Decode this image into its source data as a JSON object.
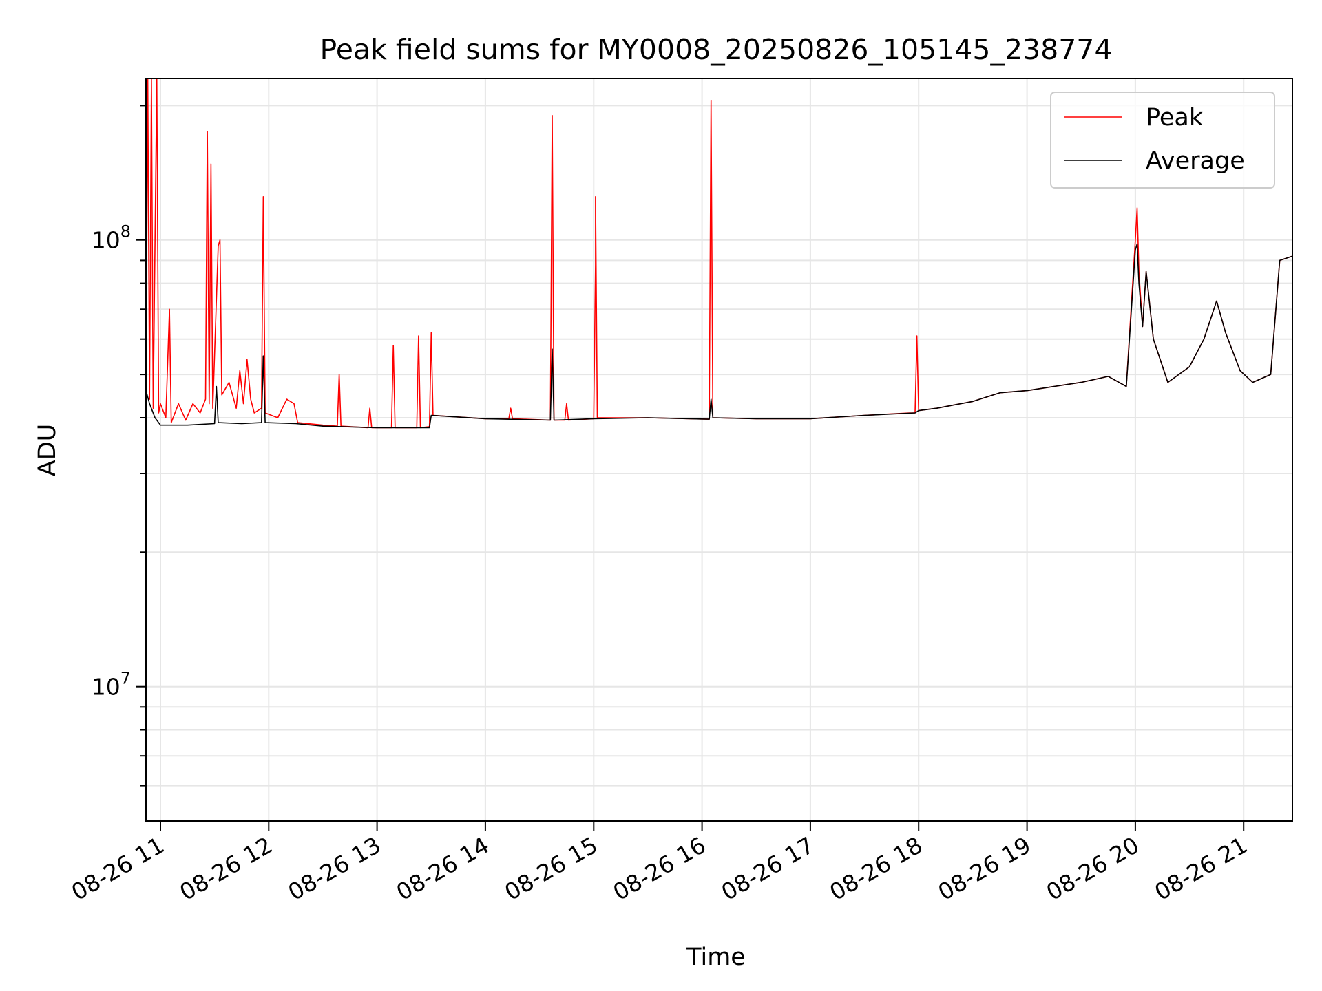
{
  "chart_data": {
    "type": "line",
    "title": "Peak field sums for MY0008_20250826_105145_238774",
    "xlabel": "Time",
    "ylabel": "ADU",
    "x_axis": {
      "kind": "datetime",
      "range": [
        "2025-08-26 10:52",
        "2025-08-26 21:27"
      ],
      "ticks": [
        {
          "label": "08-26 11",
          "value": "2025-08-26 11:00"
        },
        {
          "label": "08-26 12",
          "value": "2025-08-26 12:00"
        },
        {
          "label": "08-26 13",
          "value": "2025-08-26 13:00"
        },
        {
          "label": "08-26 14",
          "value": "2025-08-26 14:00"
        },
        {
          "label": "08-26 15",
          "value": "2025-08-26 15:00"
        },
        {
          "label": "08-26 16",
          "value": "2025-08-26 16:00"
        },
        {
          "label": "08-26 17",
          "value": "2025-08-26 17:00"
        },
        {
          "label": "08-26 18",
          "value": "2025-08-26 18:00"
        },
        {
          "label": "08-26 19",
          "value": "2025-08-26 19:00"
        },
        {
          "label": "08-26 20",
          "value": "2025-08-26 20:00"
        },
        {
          "label": "08-26 21",
          "value": "2025-08-26 21:00"
        }
      ]
    },
    "y_axis": {
      "scale": "log",
      "range": [
        5000000,
        230000000
      ],
      "major_ticks": [
        {
          "label_base": "10",
          "label_exp": "7",
          "value": 10000000
        },
        {
          "label_base": "10",
          "label_exp": "8",
          "value": 100000000
        }
      ],
      "minor_ticks": [
        6000000,
        7000000,
        8000000,
        9000000,
        20000000,
        30000000,
        40000000,
        50000000,
        60000000,
        70000000,
        80000000,
        90000000,
        200000000
      ]
    },
    "grid": true,
    "legend_position": "top-right",
    "series": [
      {
        "name": "Peak",
        "color": "#ff0000",
        "points": [
          [
            "2025-08-26 10:52",
            46000000
          ],
          [
            "2025-08-26 10:53",
            230000000
          ],
          [
            "2025-08-26 10:54",
            44000000
          ],
          [
            "2025-08-26 10:55",
            230000000
          ],
          [
            "2025-08-26 10:56",
            42000000
          ],
          [
            "2025-08-26 10:58",
            230000000
          ],
          [
            "2025-08-26 10:59",
            41000000
          ],
          [
            "2025-08-26 11:00",
            43000000
          ],
          [
            "2025-08-26 11:03",
            40000000
          ],
          [
            "2025-08-26 11:05",
            70000000
          ],
          [
            "2025-08-26 11:06",
            39000000
          ],
          [
            "2025-08-26 11:10",
            43000000
          ],
          [
            "2025-08-26 11:14",
            39500000
          ],
          [
            "2025-08-26 11:18",
            43000000
          ],
          [
            "2025-08-26 11:22",
            41000000
          ],
          [
            "2025-08-26 11:25",
            44000000
          ],
          [
            "2025-08-26 11:26",
            175000000
          ],
          [
            "2025-08-26 11:27",
            43000000
          ],
          [
            "2025-08-26 11:28",
            148000000
          ],
          [
            "2025-08-26 11:29",
            42000000
          ],
          [
            "2025-08-26 11:32",
            97000000
          ],
          [
            "2025-08-26 11:33",
            100000000
          ],
          [
            "2025-08-26 11:34",
            45000000
          ],
          [
            "2025-08-26 11:38",
            48000000
          ],
          [
            "2025-08-26 11:42",
            42000000
          ],
          [
            "2025-08-26 11:44",
            51000000
          ],
          [
            "2025-08-26 11:46",
            43000000
          ],
          [
            "2025-08-26 11:48",
            54000000
          ],
          [
            "2025-08-26 11:50",
            44000000
          ],
          [
            "2025-08-26 11:52",
            41000000
          ],
          [
            "2025-08-26 11:56",
            42000000
          ],
          [
            "2025-08-26 11:57",
            125000000
          ],
          [
            "2025-08-26 11:58",
            41000000
          ],
          [
            "2025-08-26 12:05",
            40000000
          ],
          [
            "2025-08-26 12:10",
            44000000
          ],
          [
            "2025-08-26 12:14",
            43000000
          ],
          [
            "2025-08-26 12:16",
            39000000
          ],
          [
            "2025-08-26 12:30",
            38500000
          ],
          [
            "2025-08-26 12:38",
            38300000
          ],
          [
            "2025-08-26 12:39",
            50000000
          ],
          [
            "2025-08-26 12:40",
            38300000
          ],
          [
            "2025-08-26 12:55",
            38000000
          ],
          [
            "2025-08-26 12:56",
            42000000
          ],
          [
            "2025-08-26 12:57",
            38000000
          ],
          [
            "2025-08-26 13:08",
            38000000
          ],
          [
            "2025-08-26 13:09",
            58000000
          ],
          [
            "2025-08-26 13:10",
            38000000
          ],
          [
            "2025-08-26 13:22",
            38000000
          ],
          [
            "2025-08-26 13:23",
            61000000
          ],
          [
            "2025-08-26 13:24",
            38000000
          ],
          [
            "2025-08-26 13:29",
            38200000
          ],
          [
            "2025-08-26 13:30",
            62000000
          ],
          [
            "2025-08-26 13:31",
            40500000
          ],
          [
            "2025-08-26 14:00",
            39800000
          ],
          [
            "2025-08-26 14:13",
            39800000
          ],
          [
            "2025-08-26 14:14",
            42000000
          ],
          [
            "2025-08-26 14:15",
            39800000
          ],
          [
            "2025-08-26 14:36",
            39500000
          ],
          [
            "2025-08-26 14:37",
            190000000
          ],
          [
            "2025-08-26 14:38",
            39500000
          ],
          [
            "2025-08-26 14:44",
            39500000
          ],
          [
            "2025-08-26 14:45",
            43000000
          ],
          [
            "2025-08-26 14:46",
            39500000
          ],
          [
            "2025-08-26 15:00",
            39800000
          ],
          [
            "2025-08-26 15:01",
            88000000
          ],
          [
            "2025-08-26 15:01",
            125000000
          ],
          [
            "2025-08-26 15:02",
            40000000
          ],
          [
            "2025-08-26 15:30",
            40000000
          ],
          [
            "2025-08-26 16:04",
            39700000
          ],
          [
            "2025-08-26 16:05",
            205000000
          ],
          [
            "2025-08-26 16:06",
            40000000
          ],
          [
            "2025-08-26 16:30",
            39800000
          ],
          [
            "2025-08-26 17:00",
            39800000
          ],
          [
            "2025-08-26 17:30",
            40500000
          ],
          [
            "2025-08-26 17:55",
            41000000
          ],
          [
            "2025-08-26 17:58",
            41000000
          ],
          [
            "2025-08-26 17:59",
            61000000
          ],
          [
            "2025-08-26 18:00",
            41500000
          ],
          [
            "2025-08-26 18:10",
            42000000
          ],
          [
            "2025-08-26 18:30",
            43500000
          ],
          [
            "2025-08-26 18:45",
            45500000
          ],
          [
            "2025-08-26 19:00",
            46000000
          ],
          [
            "2025-08-26 19:15",
            47000000
          ],
          [
            "2025-08-26 19:30",
            48000000
          ],
          [
            "2025-08-26 19:45",
            49500000
          ],
          [
            "2025-08-26 19:55",
            47000000
          ],
          [
            "2025-08-26 20:00",
            100000000
          ],
          [
            "2025-08-26 20:01",
            118000000
          ],
          [
            "2025-08-26 20:02",
            85000000
          ],
          [
            "2025-08-26 20:04",
            64000000
          ],
          [
            "2025-08-26 20:06",
            85000000
          ],
          [
            "2025-08-26 20:10",
            60000000
          ],
          [
            "2025-08-26 20:18",
            48000000
          ],
          [
            "2025-08-26 20:30",
            52000000
          ],
          [
            "2025-08-26 20:38",
            60000000
          ],
          [
            "2025-08-26 20:45",
            73000000
          ],
          [
            "2025-08-26 20:50",
            62000000
          ],
          [
            "2025-08-26 20:58",
            51000000
          ],
          [
            "2025-08-26 21:05",
            48000000
          ],
          [
            "2025-08-26 21:15",
            50000000
          ],
          [
            "2025-08-26 21:20",
            90000000
          ],
          [
            "2025-08-26 21:27",
            92000000
          ]
        ]
      },
      {
        "name": "Average",
        "color": "#000000",
        "points": [
          [
            "2025-08-26 10:52",
            46000000
          ],
          [
            "2025-08-26 10:54",
            43000000
          ],
          [
            "2025-08-26 10:57",
            40000000
          ],
          [
            "2025-08-26 11:00",
            38500000
          ],
          [
            "2025-08-26 11:15",
            38500000
          ],
          [
            "2025-08-26 11:30",
            38800000
          ],
          [
            "2025-08-26 11:31",
            47000000
          ],
          [
            "2025-08-26 11:32",
            39000000
          ],
          [
            "2025-08-26 11:45",
            38800000
          ],
          [
            "2025-08-26 11:56",
            39000000
          ],
          [
            "2025-08-26 11:57",
            55000000
          ],
          [
            "2025-08-26 11:58",
            39000000
          ],
          [
            "2025-08-26 12:15",
            38800000
          ],
          [
            "2025-08-26 12:30",
            38300000
          ],
          [
            "2025-08-26 13:00",
            38000000
          ],
          [
            "2025-08-26 13:29",
            38000000
          ],
          [
            "2025-08-26 13:30",
            40500000
          ],
          [
            "2025-08-26 14:00",
            39800000
          ],
          [
            "2025-08-26 14:36",
            39500000
          ],
          [
            "2025-08-26 14:37",
            57000000
          ],
          [
            "2025-08-26 14:38",
            39500000
          ],
          [
            "2025-08-26 15:00",
            39800000
          ],
          [
            "2025-08-26 15:30",
            40000000
          ],
          [
            "2025-08-26 16:04",
            39700000
          ],
          [
            "2025-08-26 16:05",
            44000000
          ],
          [
            "2025-08-26 16:06",
            40000000
          ],
          [
            "2025-08-26 16:30",
            39800000
          ],
          [
            "2025-08-26 17:00",
            39800000
          ],
          [
            "2025-08-26 17:30",
            40500000
          ],
          [
            "2025-08-26 17:58",
            41000000
          ],
          [
            "2025-08-26 18:00",
            41500000
          ],
          [
            "2025-08-26 18:10",
            42000000
          ],
          [
            "2025-08-26 18:30",
            43500000
          ],
          [
            "2025-08-26 18:45",
            45500000
          ],
          [
            "2025-08-26 19:00",
            46000000
          ],
          [
            "2025-08-26 19:15",
            47000000
          ],
          [
            "2025-08-26 19:30",
            48000000
          ],
          [
            "2025-08-26 19:45",
            49500000
          ],
          [
            "2025-08-26 19:55",
            47000000
          ],
          [
            "2025-08-26 20:00",
            95000000
          ],
          [
            "2025-08-26 20:01",
            98000000
          ],
          [
            "2025-08-26 20:02",
            80000000
          ],
          [
            "2025-08-26 20:04",
            64000000
          ],
          [
            "2025-08-26 20:06",
            85000000
          ],
          [
            "2025-08-26 20:10",
            60000000
          ],
          [
            "2025-08-26 20:18",
            48000000
          ],
          [
            "2025-08-26 20:30",
            52000000
          ],
          [
            "2025-08-26 20:38",
            60000000
          ],
          [
            "2025-08-26 20:45",
            73000000
          ],
          [
            "2025-08-26 20:50",
            62000000
          ],
          [
            "2025-08-26 20:58",
            51000000
          ],
          [
            "2025-08-26 21:05",
            48000000
          ],
          [
            "2025-08-26 21:15",
            50000000
          ],
          [
            "2025-08-26 21:20",
            90000000
          ],
          [
            "2025-08-26 21:27",
            92000000
          ]
        ]
      }
    ]
  }
}
